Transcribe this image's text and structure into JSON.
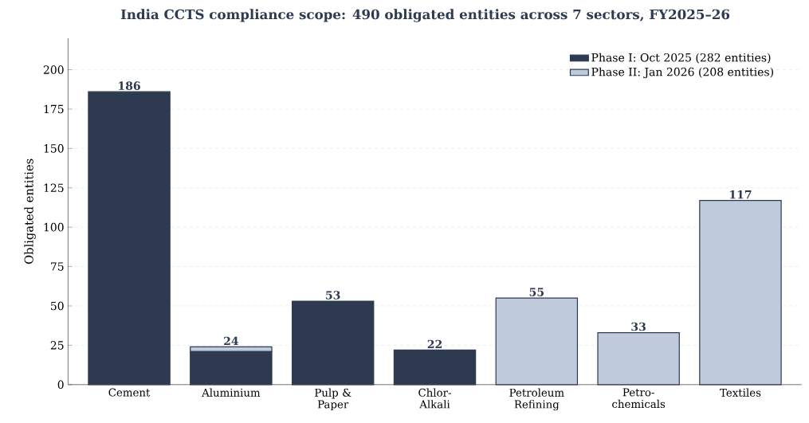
{
  "chart_data": {
    "type": "bar",
    "title": "India CCTS compliance scope: 490 obligated entities across 7 sectors, FY2025–26",
    "ylabel": "Obligated entities",
    "categories": [
      "Cement",
      "Aluminium",
      "Pulp & Paper",
      "Chlor-Alkali",
      "Petroleum Refining",
      "Petro-chemicals",
      "Textiles"
    ],
    "stacked": true,
    "series": [
      {
        "name": "Phase I: Oct 2025 (282 entities)",
        "color": "#2e3a4f",
        "values": [
          186,
          21,
          53,
          22,
          null,
          null,
          null
        ]
      },
      {
        "name": "Phase II: Jan 2026 (208 entities)",
        "color": "#bfcbdc",
        "values": [
          null,
          3,
          null,
          null,
          55,
          33,
          117
        ]
      }
    ],
    "totals": [
      "186",
      "24",
      "53",
      "22",
      "55",
      "33",
      "117"
    ],
    "ylim": [
      0,
      220
    ],
    "yticks": [
      0,
      25,
      50,
      75,
      100,
      125,
      150,
      175,
      200
    ],
    "grid": "y",
    "legend": "top right"
  }
}
